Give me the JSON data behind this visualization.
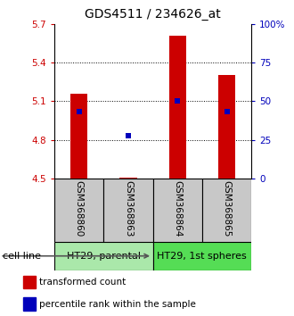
{
  "title": "GDS4511 / 234626_at",
  "samples": [
    "GSM368860",
    "GSM368863",
    "GSM368864",
    "GSM368865"
  ],
  "red_bar_tops": [
    5.155,
    4.507,
    5.61,
    5.3
  ],
  "red_bar_bottom": 4.5,
  "blue_y": [
    5.02,
    4.835,
    5.105,
    5.02
  ],
  "ylim_left": [
    4.5,
    5.7
  ],
  "ylim_right": [
    0,
    100
  ],
  "yticks_left": [
    4.5,
    4.8,
    5.1,
    5.4,
    5.7
  ],
  "yticks_right": [
    0,
    25,
    50,
    75,
    100
  ],
  "ytick_labels_right": [
    "0",
    "25",
    "50",
    "75",
    "100%"
  ],
  "ytick_labels_left": [
    "4.5",
    "4.8",
    "5.1",
    "5.4",
    "5.7"
  ],
  "groups": [
    {
      "label": "HT29, parental",
      "samples": [
        0,
        1
      ],
      "color": "#aae8aa"
    },
    {
      "label": "HT29, 1st spheres",
      "samples": [
        2,
        3
      ],
      "color": "#55dd55"
    }
  ],
  "cell_line_label": "cell line",
  "legend_red": "transformed count",
  "legend_blue": "percentile rank within the sample",
  "red_color": "#cc0000",
  "blue_color": "#0000bb",
  "bar_width": 0.35,
  "sample_box_color": "#c8c8c8",
  "title_fontsize": 10,
  "tick_fontsize": 7.5,
  "sample_fontsize": 7.5,
  "group_fontsize": 8,
  "legend_fontsize": 7.5,
  "cell_line_fontsize": 8
}
